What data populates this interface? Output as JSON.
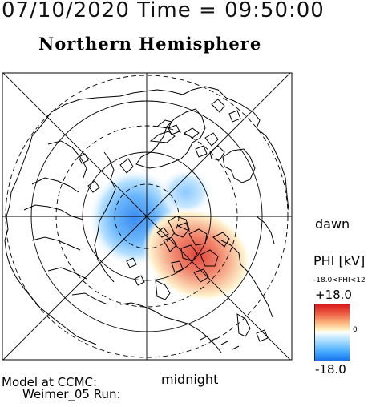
{
  "header": {
    "datetime": "07/10/2020 Time = 09:50:00",
    "hemisphere": "Northern Hemisphere"
  },
  "labels": {
    "dawn": "dawn",
    "midnight": "midnight"
  },
  "colorbar": {
    "title": "PHI [kV]",
    "range_text": "-18.0<PHI<12",
    "max_label": "+18.0",
    "zero_label": "0",
    "min_label": "-18.0",
    "positive_color": "#d7191c",
    "negative_color": "#1a73e8"
  },
  "footer": {
    "model_line": "Model at CCMC:",
    "run_line": "Weimer_05 Run:"
  }
}
